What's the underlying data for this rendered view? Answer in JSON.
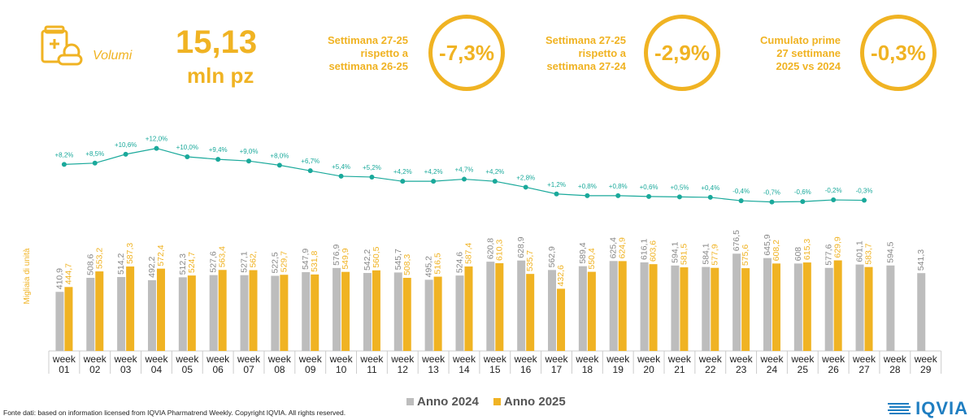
{
  "kpi": {
    "label": "Volumi",
    "value": "15,13",
    "unit": "mln pz"
  },
  "comparisons": [
    {
      "text": [
        "Settimana 27-25",
        "rispetto a",
        "settimana 26-25"
      ],
      "value": "-7,3%"
    },
    {
      "text": [
        "Settimana 27-25",
        "rispetto a",
        "settimana 27-24"
      ],
      "value": "-2,9%"
    },
    {
      "text": [
        "Cumulato prime",
        "27 settimane",
        "2025 vs 2024"
      ],
      "value": "-0,3%"
    }
  ],
  "source": "Fonte dati: based on information licensed from IQVIA Pharmatrend Weekly. Copyright IQVIA. All rights reserved.",
  "logo_text": "IQVIA",
  "colors": {
    "accent": "#f0b323",
    "grey": "#bdbdbd",
    "line": "#1aa99b",
    "brand": "#1f7ec1"
  },
  "chart_data": {
    "type": "bar",
    "ylabel": "Migliaia di unità",
    "categories": [
      "week 01",
      "week 02",
      "week 03",
      "week 04",
      "week 05",
      "week 06",
      "week 07",
      "week 08",
      "week 09",
      "week 10",
      "week 11",
      "week 12",
      "week 13",
      "week 14",
      "week 15",
      "week 16",
      "week 17",
      "week 18",
      "week 19",
      "week 20",
      "week 21",
      "week 22",
      "week 23",
      "week 24",
      "week 25",
      "week 26",
      "week 27",
      "week 28",
      "week 29"
    ],
    "category_lines": [
      [
        "week",
        "01"
      ],
      [
        "week",
        "02"
      ],
      [
        "week",
        "03"
      ],
      [
        "week",
        "04"
      ],
      [
        "week",
        "05"
      ],
      [
        "week",
        "06"
      ],
      [
        "week",
        "07"
      ],
      [
        "week",
        "08"
      ],
      [
        "week",
        "09"
      ],
      [
        "week",
        "10"
      ],
      [
        "week",
        "11"
      ],
      [
        "week",
        "12"
      ],
      [
        "week",
        "13"
      ],
      [
        "week",
        "14"
      ],
      [
        "week",
        "15"
      ],
      [
        "week",
        "16"
      ],
      [
        "week",
        "17"
      ],
      [
        "week",
        "18"
      ],
      [
        "week",
        "19"
      ],
      [
        "week",
        "20"
      ],
      [
        "week",
        "21"
      ],
      [
        "week",
        "22"
      ],
      [
        "week",
        "23"
      ],
      [
        "week",
        "24"
      ],
      [
        "week",
        "25"
      ],
      [
        "week",
        "26"
      ],
      [
        "week",
        "27"
      ],
      [
        "week",
        "28"
      ],
      [
        "week",
        "29"
      ]
    ],
    "series": [
      {
        "name": "Anno 2024",
        "color": "#bdbdbd",
        "values": [
          410.9,
          508.6,
          514.2,
          492.2,
          512.3,
          527.6,
          527.1,
          522.5,
          547.9,
          576.9,
          542.2,
          545.7,
          495.2,
          524.6,
          620.8,
          628.9,
          562.9,
          589.4,
          625.4,
          616.1,
          594.1,
          584.1,
          676.5,
          645.9,
          608,
          577.6,
          601.1,
          594.5,
          541.3
        ],
        "labels": [
          "410,9",
          "508,6",
          "514,2",
          "492,2",
          "512,3",
          "527,6",
          "527,1",
          "522,5",
          "547,9",
          "576,9",
          "542,2",
          "545,7",
          "495,2",
          "524,6",
          "620,8",
          "628,9",
          "562,9",
          "589,4",
          "625,4",
          "616,1",
          "594,1",
          "584,1",
          "676,5",
          "645,9",
          "608",
          "577,6",
          "601,1",
          "594,5",
          "541,3"
        ]
      },
      {
        "name": "Anno 2025",
        "color": "#f0b323",
        "values": [
          444.7,
          553.2,
          587.3,
          572.4,
          524.7,
          563.4,
          562,
          529.7,
          531.8,
          549.9,
          560.5,
          508.3,
          516.5,
          587.4,
          610.3,
          535.7,
          432.6,
          550.4,
          624.9,
          603.6,
          581.5,
          577.9,
          575.6,
          608.2,
          615.3,
          629.9,
          583.7,
          null,
          null
        ],
        "labels": [
          "444,7",
          "553,2",
          "587,3",
          "572,4",
          "524,7",
          "563,4",
          "562,",
          "529,7",
          "531,8",
          "549,9",
          "560,5",
          "508,3",
          "516,5",
          "587,4",
          "610,3",
          "535,7",
          "432,6",
          "550,4",
          "624,9",
          "603,6",
          "581,5",
          "577,9",
          "575,6",
          "608,2",
          "615,3",
          "629,9",
          "583,7",
          "",
          ""
        ]
      }
    ],
    "growth_line": {
      "values": [
        8.2,
        8.5,
        10.6,
        12.0,
        10.0,
        9.4,
        9.0,
        8.0,
        6.7,
        5.4,
        5.2,
        4.2,
        4.2,
        4.7,
        4.2,
        2.8,
        1.2,
        0.8,
        0.8,
        0.6,
        0.5,
        0.4,
        -0.4,
        -0.7,
        -0.6,
        -0.2,
        -0.3
      ],
      "labels": [
        "+8,2%",
        "+8,5%",
        "+10,6%",
        "+12,0%",
        "+10,0%",
        "+9,4%",
        "+9,0%",
        "+8,0%",
        "+6,7%",
        "+5,4%",
        "+5,2%",
        "+4,2%",
        "+4,2%",
        "+4,7%",
        "+4,2%",
        "+2,8%",
        "+1,2%",
        "+0,8%",
        "+0,8%",
        "+0,6%",
        "+0,5%",
        "+0,4%",
        "-0,4%",
        "-0,7%",
        "-0,6%",
        "-0,2%",
        "-0,3%"
      ]
    },
    "ylim": [
      0,
      800
    ],
    "legend_position": "bottom"
  }
}
